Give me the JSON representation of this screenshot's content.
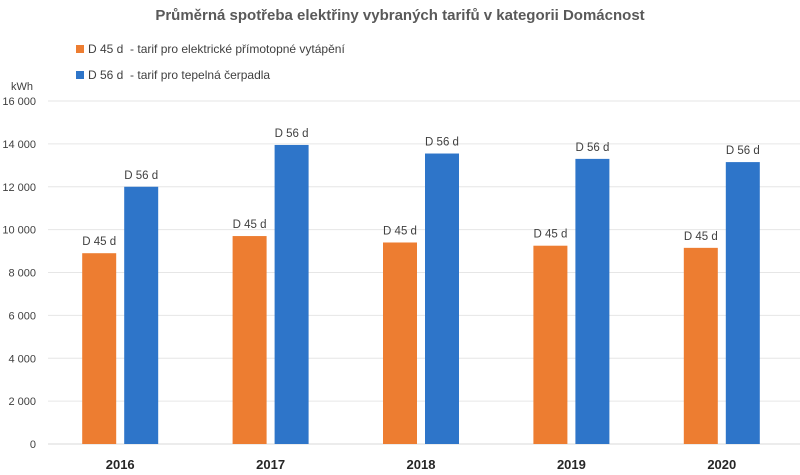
{
  "chart_data": {
    "type": "bar",
    "title": "Průměrná spotřeba elektřiny vybraných tarifů v kategorii Domácnost",
    "xlabel": "",
    "ylabel": "kWh",
    "ylim": [
      0,
      16000
    ],
    "yticks": [
      0,
      2000,
      4000,
      6000,
      8000,
      10000,
      12000,
      14000,
      16000
    ],
    "ytick_labels": [
      "0",
      "2 000",
      "4 000",
      "6 000",
      "8 000",
      "10 000",
      "12 000",
      "14 000",
      "16 000"
    ],
    "grid": true,
    "legend_position": "top-left",
    "categories": [
      "2016",
      "2017",
      "2018",
      "2019",
      "2020"
    ],
    "series": [
      {
        "name": "D 45 d  - tarif pro elektrické přímotopné vytápění",
        "data_label": "D 45 d",
        "color": "#ED7D31",
        "values": [
          8900,
          9700,
          9400,
          9250,
          9150
        ]
      },
      {
        "name": "D 56 d  - tarif pro tepelná čerpadla",
        "data_label": "D 56 d",
        "color": "#2E75C9",
        "values": [
          12000,
          13950,
          13550,
          13300,
          13150
        ]
      }
    ]
  }
}
